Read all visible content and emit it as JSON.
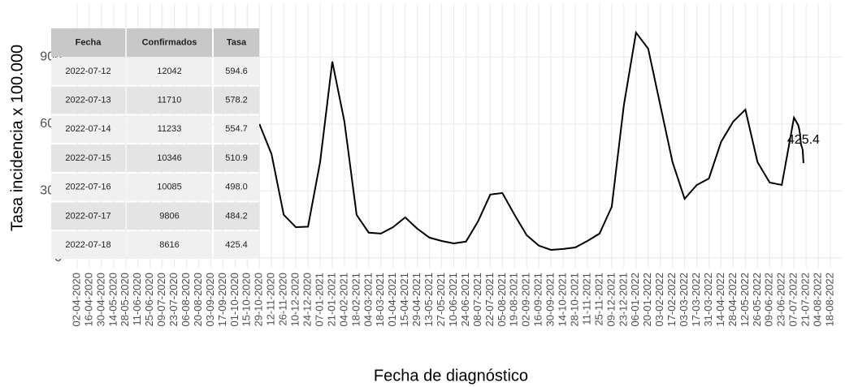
{
  "chart_data": {
    "type": "line",
    "ylabel": "Tasa incidencia x 100.000",
    "xlabel": "Fecha de diagnóstico",
    "annotation": "425.4",
    "ylim": [
      -44,
      1138
    ],
    "yticks": [
      0,
      300,
      600,
      900
    ],
    "xlim": [
      "19-03-2020",
      "01-09-2022"
    ],
    "xticks": [
      "02-04-2020",
      "16-04-2020",
      "30-04-2020",
      "14-05-2020",
      "28-05-2020",
      "11-06-2020",
      "25-06-2020",
      "09-07-2020",
      "23-07-2020",
      "06-08-2020",
      "20-08-2020",
      "03-09-2020",
      "17-09-2020",
      "01-10-2020",
      "15-10-2020",
      "29-10-2020",
      "12-11-2020",
      "26-11-2020",
      "10-12-2020",
      "24-12-2020",
      "07-01-2021",
      "21-01-2021",
      "04-02-2021",
      "18-02-2021",
      "04-03-2021",
      "18-03-2021",
      "01-04-2021",
      "15-04-2021",
      "29-04-2021",
      "13-05-2021",
      "27-05-2021",
      "10-06-2021",
      "24-06-2021",
      "08-07-2021",
      "22-07-2021",
      "05-08-2021",
      "19-08-2021",
      "02-09-2021",
      "16-09-2021",
      "30-09-2021",
      "14-10-2021",
      "28-10-2021",
      "11-11-2021",
      "25-11-2021",
      "09-12-2021",
      "23-12-2021",
      "06-01-2022",
      "20-01-2022",
      "03-02-2022",
      "17-02-2022",
      "03-03-2022",
      "17-03-2022",
      "31-03-2022",
      "14-04-2022",
      "28-04-2022",
      "12-05-2022",
      "26-05-2022",
      "09-06-2022",
      "23-06-2022",
      "07-07-2022",
      "21-07-2022",
      "04-08-2022",
      "18-08-2022"
    ],
    "grid": true,
    "series": [
      {
        "name": "Tasa",
        "color": "#000000",
        "x": [
          "29-10-2020",
          "12-11-2020",
          "26-11-2020",
          "10-12-2020",
          "24-12-2020",
          "07-01-2021",
          "21-01-2021",
          "04-02-2021",
          "18-02-2021",
          "04-03-2021",
          "18-03-2021",
          "01-04-2021",
          "15-04-2021",
          "29-04-2021",
          "13-05-2021",
          "27-05-2021",
          "10-06-2021",
          "24-06-2021",
          "08-07-2021",
          "22-07-2021",
          "05-08-2021",
          "19-08-2021",
          "02-09-2021",
          "16-09-2021",
          "30-09-2021",
          "14-10-2021",
          "28-10-2021",
          "11-11-2021",
          "25-11-2021",
          "09-12-2021",
          "23-12-2021",
          "06-01-2022",
          "20-01-2022",
          "03-02-2022",
          "17-02-2022",
          "03-03-2022",
          "17-03-2022",
          "31-03-2022",
          "14-04-2022",
          "28-04-2022",
          "12-05-2022",
          "26-05-2022",
          "09-06-2022",
          "23-06-2022",
          "07-07-2022",
          "12-07-2022",
          "13-07-2022",
          "14-07-2022",
          "15-07-2022",
          "16-07-2022",
          "17-07-2022",
          "18-07-2022"
        ],
        "values": [
          600,
          465,
          193,
          138,
          140,
          430,
          880,
          611,
          193,
          113,
          109,
          138,
          182,
          131,
          91,
          76,
          65,
          73,
          164,
          284,
          291,
          193,
          102,
          55,
          36,
          40,
          47,
          76,
          109,
          229,
          684,
          1010,
          938,
          684,
          430,
          265,
          327,
          356,
          520,
          611,
          665,
          430,
          338,
          327,
          629,
          594.6,
          578.2,
          554.7,
          510.9,
          498.0,
          484.2,
          425.4
        ]
      }
    ],
    "table": {
      "columns": [
        "Fecha",
        "Confirmados",
        "Tasa"
      ],
      "rows": [
        [
          "2022-07-12",
          "12042",
          "594.6"
        ],
        [
          "2022-07-13",
          "11710",
          "578.2"
        ],
        [
          "2022-07-14",
          "11233",
          "554.7"
        ],
        [
          "2022-07-15",
          "10346",
          "510.9"
        ],
        [
          "2022-07-16",
          "10085",
          "498.0"
        ],
        [
          "2022-07-17",
          "9806",
          "484.2"
        ],
        [
          "2022-07-18",
          "8616",
          "425.4"
        ]
      ]
    }
  }
}
